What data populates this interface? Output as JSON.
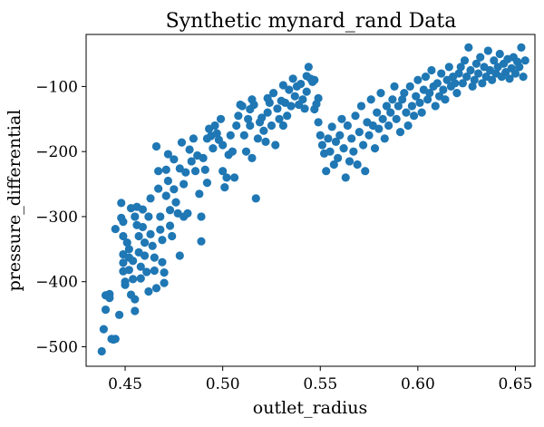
{
  "chart_data": {
    "type": "scatter",
    "title": "Synthetic mynard_rand Data",
    "xlabel": "outlet_radius",
    "ylabel": "pressure_differential",
    "xlim": [
      0.43,
      0.66
    ],
    "ylim": [
      -530,
      -20
    ],
    "xticks": [
      0.45,
      0.5,
      0.55,
      0.6,
      0.65
    ],
    "xtick_labels": [
      "0.45",
      "0.50",
      "0.55",
      "0.60",
      "0.65"
    ],
    "yticks": [
      -500,
      -400,
      -300,
      -200,
      -100
    ],
    "ytick_labels": [
      "−500",
      "−400",
      "−300",
      "−200",
      "−100"
    ],
    "grid": false,
    "marker_color": "#1f77b4",
    "points": [
      [
        0.438,
        -507
      ],
      [
        0.439,
        -473
      ],
      [
        0.44,
        -421
      ],
      [
        0.44,
        -443
      ],
      [
        0.442,
        -419
      ],
      [
        0.442,
        -425
      ],
      [
        0.443,
        -488
      ],
      [
        0.444,
        -489
      ],
      [
        0.445,
        -488
      ],
      [
        0.447,
        -451
      ],
      [
        0.445,
        -319
      ],
      [
        0.448,
        -279
      ],
      [
        0.448,
        -302
      ],
      [
        0.449,
        -308
      ],
      [
        0.449,
        -330
      ],
      [
        0.449,
        -358
      ],
      [
        0.449,
        -371
      ],
      [
        0.449,
        -384
      ],
      [
        0.45,
        -400
      ],
      [
        0.45,
        -405
      ],
      [
        0.451,
        -340
      ],
      [
        0.452,
        -350
      ],
      [
        0.452,
        -363
      ],
      [
        0.452,
        -382
      ],
      [
        0.453,
        -287
      ],
      [
        0.453,
        -420
      ],
      [
        0.454,
        -368
      ],
      [
        0.454,
        -396
      ],
      [
        0.455,
        -445
      ],
      [
        0.455,
        -427
      ],
      [
        0.455,
        -300
      ],
      [
        0.456,
        -285
      ],
      [
        0.456,
        -313
      ],
      [
        0.457,
        -330
      ],
      [
        0.457,
        -355
      ],
      [
        0.458,
        -377
      ],
      [
        0.458,
        -395
      ],
      [
        0.459,
        -289
      ],
      [
        0.459,
        -316
      ],
      [
        0.46,
        -360
      ],
      [
        0.46,
        -340
      ],
      [
        0.461,
        -385
      ],
      [
        0.462,
        -415
      ],
      [
        0.462,
        -300
      ],
      [
        0.463,
        -272
      ],
      [
        0.463,
        -327
      ],
      [
        0.464,
        -345
      ],
      [
        0.465,
        -363
      ],
      [
        0.465,
        -383
      ],
      [
        0.466,
        -410
      ],
      [
        0.466,
        -192
      ],
      [
        0.467,
        -230
      ],
      [
        0.467,
        -257
      ],
      [
        0.468,
        -300
      ],
      [
        0.468,
        -320
      ],
      [
        0.469,
        -336
      ],
      [
        0.469,
        -370
      ],
      [
        0.47,
        -386
      ],
      [
        0.47,
        -402
      ],
      [
        0.471,
        -228
      ],
      [
        0.471,
        -268
      ],
      [
        0.472,
        -204
      ],
      [
        0.472,
        -245
      ],
      [
        0.473,
        -290
      ],
      [
        0.473,
        -314
      ],
      [
        0.474,
        -330
      ],
      [
        0.475,
        -258
      ],
      [
        0.475,
        -212
      ],
      [
        0.476,
        -278
      ],
      [
        0.477,
        -295
      ],
      [
        0.478,
        -226
      ],
      [
        0.478,
        -360
      ],
      [
        0.479,
        -186
      ],
      [
        0.48,
        -250
      ],
      [
        0.48,
        -300
      ],
      [
        0.481,
        -232
      ],
      [
        0.482,
        -295
      ],
      [
        0.483,
        -197
      ],
      [
        0.484,
        -215
      ],
      [
        0.485,
        -180
      ],
      [
        0.486,
        -230
      ],
      [
        0.487,
        -206
      ],
      [
        0.488,
        -265
      ],
      [
        0.489,
        -300
      ],
      [
        0.489,
        -338
      ],
      [
        0.49,
        -210
      ],
      [
        0.491,
        -228
      ],
      [
        0.492,
        -180
      ],
      [
        0.492,
        -248
      ],
      [
        0.493,
        -165
      ],
      [
        0.494,
        -176
      ],
      [
        0.495,
        -195
      ],
      [
        0.496,
        -160
      ],
      [
        0.497,
        -172
      ],
      [
        0.498,
        -182
      ],
      [
        0.499,
        -150
      ],
      [
        0.5,
        -230
      ],
      [
        0.5,
        -190
      ],
      [
        0.501,
        -255
      ],
      [
        0.502,
        -240
      ],
      [
        0.503,
        -205
      ],
      [
        0.504,
        -175
      ],
      [
        0.505,
        -200
      ],
      [
        0.506,
        -240
      ],
      [
        0.507,
        -160
      ],
      [
        0.508,
        -145
      ],
      [
        0.509,
        -128
      ],
      [
        0.51,
        -130
      ],
      [
        0.511,
        -175
      ],
      [
        0.512,
        -200
      ],
      [
        0.513,
        -150
      ],
      [
        0.514,
        -135
      ],
      [
        0.514,
        -160
      ],
      [
        0.515,
        -120
      ],
      [
        0.515,
        -210
      ],
      [
        0.516,
        -128
      ],
      [
        0.517,
        -272
      ],
      [
        0.518,
        -180
      ],
      [
        0.519,
        -155
      ],
      [
        0.52,
        -148
      ],
      [
        0.521,
        -168
      ],
      [
        0.522,
        -185
      ],
      [
        0.523,
        -118
      ],
      [
        0.523,
        -140
      ],
      [
        0.524,
        -125
      ],
      [
        0.525,
        -160
      ],
      [
        0.526,
        -110
      ],
      [
        0.527,
        -190
      ],
      [
        0.528,
        -134
      ],
      [
        0.529,
        -150
      ],
      [
        0.53,
        -122
      ],
      [
        0.531,
        -160
      ],
      [
        0.531,
        -98
      ],
      [
        0.532,
        -125
      ],
      [
        0.533,
        -145
      ],
      [
        0.534,
        -105
      ],
      [
        0.535,
        -130
      ],
      [
        0.536,
        -88
      ],
      [
        0.537,
        -115
      ],
      [
        0.538,
        -100
      ],
      [
        0.539,
        -128
      ],
      [
        0.54,
        -96
      ],
      [
        0.541,
        -120
      ],
      [
        0.542,
        -134
      ],
      [
        0.543,
        -108
      ],
      [
        0.543,
        -84
      ],
      [
        0.544,
        -70
      ],
      [
        0.545,
        -88
      ],
      [
        0.546,
        -93
      ],
      [
        0.547,
        -135
      ],
      [
        0.547,
        -90
      ],
      [
        0.548,
        -127
      ],
      [
        0.549,
        -118
      ],
      [
        0.549,
        -155
      ],
      [
        0.55,
        -175
      ],
      [
        0.551,
        -190
      ],
      [
        0.552,
        -203
      ],
      [
        0.553,
        -230
      ],
      [
        0.554,
        -180
      ],
      [
        0.555,
        -200
      ],
      [
        0.556,
        -162
      ],
      [
        0.557,
        -220
      ],
      [
        0.558,
        -185
      ],
      [
        0.559,
        -210
      ],
      [
        0.56,
        -175
      ],
      [
        0.561,
        -150
      ],
      [
        0.562,
        -195
      ],
      [
        0.563,
        -240
      ],
      [
        0.564,
        -160
      ],
      [
        0.565,
        -215
      ],
      [
        0.566,
        -180
      ],
      [
        0.567,
        -200
      ],
      [
        0.568,
        -145
      ],
      [
        0.569,
        -220
      ],
      [
        0.57,
        -170
      ],
      [
        0.571,
        -130
      ],
      [
        0.572,
        -190
      ],
      [
        0.573,
        -230
      ],
      [
        0.574,
        -155
      ],
      [
        0.575,
        -175
      ],
      [
        0.576,
        -120
      ],
      [
        0.577,
        -160
      ],
      [
        0.578,
        -195
      ],
      [
        0.579,
        -140
      ],
      [
        0.58,
        -165
      ],
      [
        0.581,
        -110
      ],
      [
        0.582,
        -150
      ],
      [
        0.583,
        -180
      ],
      [
        0.584,
        -130
      ],
      [
        0.585,
        -160
      ],
      [
        0.586,
        -140
      ],
      [
        0.587,
        -120
      ],
      [
        0.588,
        -100
      ],
      [
        0.589,
        -150
      ],
      [
        0.59,
        -130
      ],
      [
        0.591,
        -170
      ],
      [
        0.592,
        -120
      ],
      [
        0.593,
        -110
      ],
      [
        0.594,
        -140
      ],
      [
        0.595,
        -160
      ],
      [
        0.596,
        -100
      ],
      [
        0.597,
        -130
      ],
      [
        0.598,
        -145
      ],
      [
        0.599,
        -115
      ],
      [
        0.6,
        -90
      ],
      [
        0.601,
        -125
      ],
      [
        0.602,
        -140
      ],
      [
        0.603,
        -105
      ],
      [
        0.604,
        -85
      ],
      [
        0.605,
        -120
      ],
      [
        0.606,
        -110
      ],
      [
        0.607,
        -75
      ],
      [
        0.608,
        -100
      ],
      [
        0.609,
        -130
      ],
      [
        0.61,
        -95
      ],
      [
        0.611,
        -115
      ],
      [
        0.612,
        -80
      ],
      [
        0.613,
        -105
      ],
      [
        0.614,
        -120
      ],
      [
        0.615,
        -90
      ],
      [
        0.616,
        -70
      ],
      [
        0.617,
        -100
      ],
      [
        0.618,
        -85
      ],
      [
        0.619,
        -95
      ],
      [
        0.62,
        -110
      ],
      [
        0.621,
        -80
      ],
      [
        0.622,
        -70
      ],
      [
        0.623,
        -95
      ],
      [
        0.624,
        -60
      ],
      [
        0.625,
        -85
      ],
      [
        0.626,
        -40
      ],
      [
        0.627,
        -75
      ],
      [
        0.628,
        -100
      ],
      [
        0.629,
        -90
      ],
      [
        0.63,
        -65
      ],
      [
        0.631,
        -80
      ],
      [
        0.632,
        -55
      ],
      [
        0.633,
        -95
      ],
      [
        0.634,
        -70
      ],
      [
        0.635,
        -85
      ],
      [
        0.636,
        -45
      ],
      [
        0.637,
        -75
      ],
      [
        0.638,
        -90
      ],
      [
        0.639,
        -60
      ],
      [
        0.64,
        -80
      ],
      [
        0.641,
        -70
      ],
      [
        0.642,
        -50
      ],
      [
        0.643,
        -85
      ],
      [
        0.644,
        -65
      ],
      [
        0.645,
        -78
      ],
      [
        0.646,
        -58
      ],
      [
        0.647,
        -88
      ],
      [
        0.648,
        -72
      ],
      [
        0.649,
        -55
      ],
      [
        0.65,
        -80
      ],
      [
        0.651,
        -62
      ],
      [
        0.652,
        -70
      ],
      [
        0.653,
        -40
      ],
      [
        0.654,
        -85
      ],
      [
        0.655,
        -60
      ]
    ]
  }
}
